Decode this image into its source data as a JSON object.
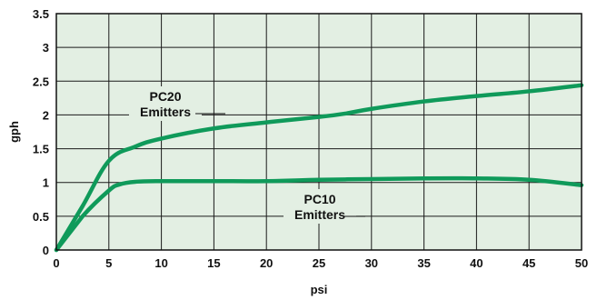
{
  "chart_data": {
    "type": "line",
    "title": "",
    "xlabel": "psi",
    "ylabel": "gph",
    "xlim": [
      0,
      50
    ],
    "ylim": [
      0,
      3.5
    ],
    "x_ticks": [
      0,
      5,
      10,
      15,
      20,
      25,
      30,
      35,
      40,
      45,
      50
    ],
    "y_ticks": [
      0,
      0.5,
      1,
      1.5,
      2,
      2.5,
      3,
      3.5
    ],
    "grid": true,
    "colors": {
      "plot_background": "#e3efe3",
      "grid": "#1a1a1a",
      "series_line": "#0f9a5a",
      "axis": "#111111"
    },
    "series": [
      {
        "id": "pc20",
        "x": [
          0,
          2.5,
          5,
          7.5,
          10,
          15,
          20,
          25,
          27.5,
          30,
          35,
          40,
          45,
          50
        ],
        "y": [
          0,
          0.65,
          1.32,
          1.53,
          1.65,
          1.8,
          1.89,
          1.97,
          2.02,
          2.09,
          2.2,
          2.28,
          2.35,
          2.44
        ]
      },
      {
        "id": "pc10",
        "x": [
          0,
          2.5,
          5,
          6,
          7.5,
          10,
          15,
          20,
          25,
          30,
          35,
          40,
          45,
          50
        ],
        "y": [
          0,
          0.5,
          0.88,
          0.97,
          1.01,
          1.02,
          1.02,
          1.02,
          1.04,
          1.05,
          1.06,
          1.06,
          1.04,
          0.96
        ]
      }
    ],
    "annotations": [
      {
        "series": "pc20",
        "lines": [
          "PC20",
          "Emitters"
        ]
      },
      {
        "series": "pc10",
        "lines": [
          "PC10",
          "Emitters"
        ]
      }
    ]
  }
}
